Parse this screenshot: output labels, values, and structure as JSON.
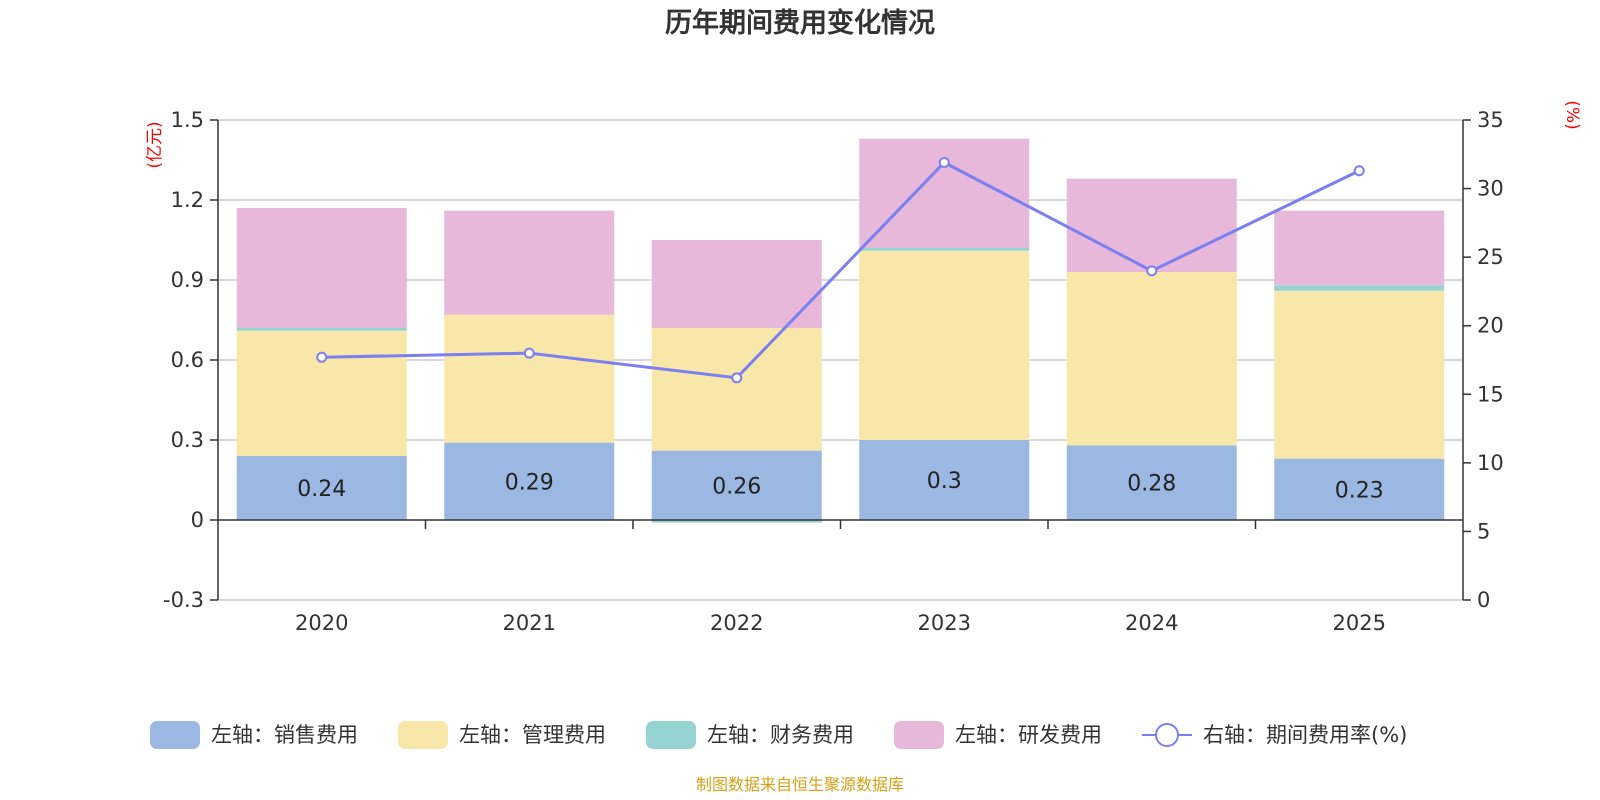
{
  "chart_data": {
    "type": "bar",
    "title": "历年期间费用变化情况",
    "categories": [
      "2020",
      "2021",
      "2022",
      "2023",
      "2024",
      "2025"
    ],
    "left_axis": {
      "unit": "(亿元)",
      "ylim": [
        -0.3,
        1.5
      ],
      "ticks": [
        -0.3,
        0,
        0.3,
        0.6,
        0.9,
        1.2,
        1.5
      ],
      "tick_labels": [
        "-0.3",
        "0",
        "0.3",
        "0.6",
        "0.9",
        "1.2",
        "1.5"
      ]
    },
    "right_axis": {
      "unit": "(%)",
      "ylim": [
        0,
        35
      ],
      "ticks": [
        0,
        5,
        10,
        15,
        20,
        25,
        30,
        35
      ],
      "tick_labels": [
        "0",
        "5",
        "10",
        "15",
        "20",
        "25",
        "30",
        "35"
      ]
    },
    "series": [
      {
        "name": "左轴：销售费用",
        "kind": "bar",
        "axis": "left",
        "color": "#9bb8e2",
        "values": [
          0.24,
          0.29,
          0.26,
          0.3,
          0.28,
          0.23
        ],
        "labels": [
          "0.24",
          "0.29",
          "0.26",
          "0.3",
          "0.28",
          "0.23"
        ]
      },
      {
        "name": "左轴：管理费用",
        "kind": "bar",
        "axis": "left",
        "color": "#f8e7a8",
        "values": [
          0.47,
          0.48,
          0.46,
          0.71,
          0.65,
          0.63
        ]
      },
      {
        "name": "左轴：财务费用",
        "kind": "bar",
        "axis": "left",
        "color": "#96d4d4",
        "values": [
          0.01,
          0.0,
          -0.01,
          0.01,
          0.0,
          0.02
        ]
      },
      {
        "name": "左轴：研发费用",
        "kind": "bar",
        "axis": "left",
        "color": "#e7b8da",
        "values": [
          0.45,
          0.39,
          0.33,
          0.41,
          0.35,
          0.28
        ]
      },
      {
        "name": "右轴：期间费用率(%)",
        "kind": "line",
        "axis": "right",
        "color": "#7b7ff0",
        "values": [
          17.7,
          18.0,
          16.2,
          31.9,
          24.0,
          31.3
        ]
      }
    ],
    "legend_position": "bottom",
    "grid": true
  },
  "source_note": "制图数据来自恒生聚源数据库",
  "source_color": "#d4a017"
}
